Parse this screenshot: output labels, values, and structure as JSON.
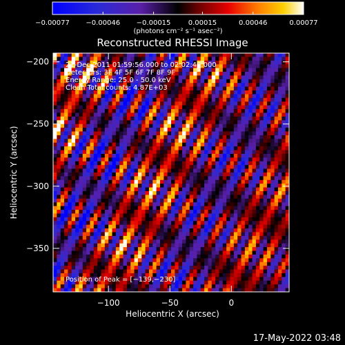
{
  "chart_data": {
    "type": "heatmap",
    "title": "Reconstructed RHESSI Image",
    "xlabel": "Heliocentric X (arcsec)",
    "ylabel": "Heliocentric Y (arcsec)",
    "xlim": [
      -145,
      47
    ],
    "ylim": [
      -385,
      -193
    ],
    "x_ticks": [
      -100,
      -50,
      0
    ],
    "x_tick_labels": [
      "−100",
      "−50",
      "0"
    ],
    "y_ticks": [
      -200,
      -250,
      -300,
      -350
    ],
    "y_tick_labels": [
      "−200",
      "−250",
      "−300",
      "−350"
    ],
    "colorbar": {
      "range": [
        -0.00077,
        0.00077
      ],
      "ticks": [
        -0.00077,
        -0.00046,
        -0.00015,
        0.00015,
        0.00046,
        0.00077
      ],
      "tick_labels": [
        "−0.00077",
        "−0.00046",
        "−0.00015",
        "0.00015",
        "0.00046",
        "0.00077"
      ],
      "unit_label": "(photons cm⁻² s⁻¹ asec⁻²)"
    },
    "annotations": [
      "21-Dec-2011 01:59:56.000 to 02:02:48.000",
      "Detectors: 3F 4F 5F 6F 7F 8F 9F",
      "Energy Range: 25.0 - 50.0 keV",
      "Clean     Total counts: 4.87E+03"
    ],
    "peak_label": "Position of Peak = [−139,−230]",
    "peak_position": [
      -139,
      -230
    ],
    "grid": false
  },
  "timestamp": "17-May-2022 03:48",
  "colors": {
    "background": "#000000",
    "text": "#ffffff"
  }
}
